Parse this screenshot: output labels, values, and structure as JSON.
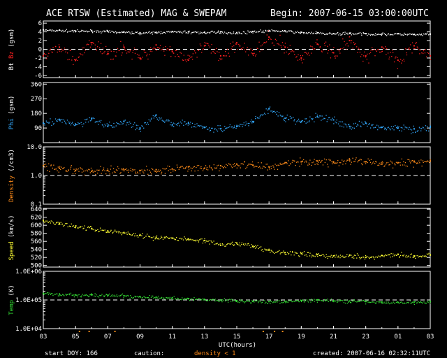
{
  "header": {
    "title": "ACE RTSW (Estimated) MAG & SWEPAM",
    "begin": "Begin: 2007-06-15 03:00:00UTC"
  },
  "footer": {
    "start_doy": "start DOY: 166",
    "caution": "caution:",
    "density_note": "density < 1",
    "created": "created: 2007-06-16 02:32:11UTC"
  },
  "colors": {
    "background": "#000000",
    "axes": "#ffffff",
    "bt": "#ffffff",
    "bz": "#ff2020",
    "phi": "#33aaff",
    "density": "#ff8c1a",
    "speed": "#ffff33",
    "temp": "#33dd33"
  },
  "chart_data": {
    "type": "scatter",
    "x_axis": {
      "label": "UTC(hours)",
      "range": [
        3,
        27
      ],
      "tick_labels": [
        "03",
        "05",
        "07",
        "09",
        "11",
        "13",
        "15",
        "17",
        "19",
        "21",
        "23",
        "01",
        "03"
      ]
    },
    "panels": [
      {
        "id": "mag",
        "ylabel_parts": [
          {
            "text": "Bt",
            "color": "#ffffff"
          },
          {
            "text": "Bz",
            "color": "#ff2020"
          },
          {
            "text": "(gsm)",
            "color": "#ffffff"
          }
        ],
        "scale": "linear",
        "ylim": [
          -6.5,
          6.5
        ],
        "yticks": [
          -6,
          -4,
          -2,
          0,
          2,
          4,
          6
        ],
        "ytick_labels": [
          "-6",
          "-4",
          "-2",
          "0",
          "2",
          "4",
          "6"
        ],
        "ref_lines": [
          0
        ],
        "series": [
          {
            "name": "Bt",
            "color": "#ffffff",
            "x": [
              3,
              4,
              5,
              6,
              7,
              8,
              9,
              10,
              11,
              12,
              13,
              14,
              15,
              16,
              17,
              18,
              19,
              20,
              21,
              22,
              23,
              24,
              25,
              26,
              27
            ],
            "y": [
              4.5,
              4.4,
              4.2,
              4.3,
              4.1,
              4.0,
              3.8,
              3.9,
              4.1,
              4.0,
              3.9,
              4.0,
              3.8,
              4.1,
              4.3,
              4.2,
              3.9,
              3.8,
              3.6,
              3.7,
              3.6,
              3.5,
              3.6,
              3.4,
              3.5
            ],
            "jitter": 0.25
          },
          {
            "name": "Bz",
            "color": "#ff2020",
            "x": [
              3,
              4,
              5,
              6,
              7,
              8,
              9,
              10,
              11,
              12,
              13,
              14,
              15,
              16,
              17,
              18,
              19,
              20,
              21,
              22,
              23,
              24,
              25,
              26,
              27
            ],
            "y": [
              -1.5,
              0.5,
              -2.5,
              1.5,
              -1.0,
              0.5,
              -2.0,
              1.0,
              -0.5,
              -2.5,
              0.8,
              -1.5,
              1.5,
              -1.0,
              2.8,
              0.5,
              -2.0,
              1.2,
              -0.8,
              2.0,
              -1.5,
              0.5,
              -2.5,
              0.8,
              -1.5
            ],
            "jitter": 1.3
          }
        ]
      },
      {
        "id": "phi",
        "ylabel_parts": [
          {
            "text": "Phi",
            "color": "#33aaff"
          },
          {
            "text": "(gsm)",
            "color": "#ffffff"
          }
        ],
        "scale": "linear",
        "ylim": [
          0,
          370
        ],
        "yticks": [
          90,
          180,
          270,
          360
        ],
        "ytick_labels": [
          "90",
          "180",
          "270",
          "360"
        ],
        "ref_lines": [],
        "series": [
          {
            "name": "Phi",
            "color": "#33aaff",
            "x": [
              3,
              4,
              5,
              6,
              7,
              8,
              9,
              10,
              11,
              12,
              13,
              14,
              15,
              16,
              17,
              18,
              19,
              20,
              21,
              22,
              23,
              24,
              25,
              26,
              27
            ],
            "y": [
              120,
              140,
              110,
              150,
              100,
              130,
              90,
              170,
              110,
              120,
              95,
              85,
              100,
              130,
              210,
              150,
              130,
              160,
              140,
              100,
              120,
              95,
              90,
              85,
              95
            ],
            "jitter": 18
          }
        ]
      },
      {
        "id": "density",
        "ylabel_parts": [
          {
            "text": "Density",
            "color": "#ff8c1a"
          },
          {
            "text": "(/cm3)",
            "color": "#ffffff"
          }
        ],
        "scale": "log",
        "ylim": [
          0.1,
          10.0
        ],
        "yticks": [
          0.1,
          1.0,
          10.0
        ],
        "ytick_labels": [
          "0.1",
          "1.0",
          "10.0"
        ],
        "ref_lines": [
          1.0
        ],
        "series": [
          {
            "name": "Density",
            "color": "#ff8c1a",
            "x": [
              3,
              4,
              5,
              6,
              7,
              8,
              9,
              10,
              11,
              12,
              13,
              14,
              15,
              16,
              17,
              18,
              19,
              20,
              21,
              22,
              23,
              24,
              25,
              26,
              27
            ],
            "y": [
              2.2,
              1.8,
              1.5,
              1.4,
              1.5,
              1.6,
              1.5,
              1.6,
              1.7,
              2.0,
              1.8,
              2.2,
              2.5,
              2.3,
              2.0,
              2.8,
              3.0,
              3.2,
              3.0,
              3.5,
              3.0,
              2.5,
              2.8,
              3.0,
              3.2
            ],
            "jitter": 0.12
          }
        ]
      },
      {
        "id": "speed",
        "ylabel_parts": [
          {
            "text": "Speed",
            "color": "#ffff33"
          },
          {
            "text": "(km/s)",
            "color": "#ffffff"
          }
        ],
        "scale": "linear",
        "ylim": [
          496,
          642
        ],
        "yticks": [
          500,
          520,
          540,
          560,
          580,
          600,
          620,
          640
        ],
        "ytick_labels": [
          "500",
          "520",
          "540",
          "560",
          "580",
          "600",
          "620",
          "640"
        ],
        "ref_lines": [],
        "series": [
          {
            "name": "Speed",
            "color": "#ffff33",
            "x": [
              3,
              4,
              5,
              6,
              7,
              8,
              9,
              10,
              11,
              12,
              13,
              14,
              15,
              16,
              17,
              18,
              19,
              20,
              21,
              22,
              23,
              24,
              25,
              26,
              27
            ],
            "y": [
              612,
              605,
              598,
              592,
              586,
              582,
              575,
              570,
              568,
              566,
              562,
              550,
              556,
              548,
              538,
              532,
              530,
              527,
              524,
              526,
              520,
              525,
              528,
              524,
              526
            ],
            "jitter": 5
          }
        ]
      },
      {
        "id": "temp",
        "ylabel_parts": [
          {
            "text": "Temp",
            "color": "#33dd33"
          },
          {
            "text": "(K)",
            "color": "#ffffff"
          }
        ],
        "scale": "log",
        "ylim": [
          10000,
          1000000
        ],
        "yticks": [
          10000,
          100000,
          1000000
        ],
        "ytick_labels": [
          "1.0E+04",
          "1.0E+05",
          "1.0E+06"
        ],
        "ref_lines": [
          100000
        ],
        "series": [
          {
            "name": "Temp",
            "color": "#33dd33",
            "x": [
              3,
              4,
              5,
              6,
              7,
              8,
              9,
              10,
              11,
              12,
              13,
              14,
              15,
              16,
              17,
              18,
              19,
              20,
              21,
              22,
              23,
              24,
              25,
              26,
              27
            ],
            "y": [
              170000,
              160000,
              150000,
              150000,
              145000,
              140000,
              130000,
              125000,
              120000,
              110000,
              105000,
              100000,
              95000,
              90000,
              88000,
              90000,
              95000,
              100000,
              95000,
              92000,
              88000,
              85000,
              82000,
              85000,
              88000
            ],
            "jitter": 0.05
          }
        ]
      }
    ]
  }
}
